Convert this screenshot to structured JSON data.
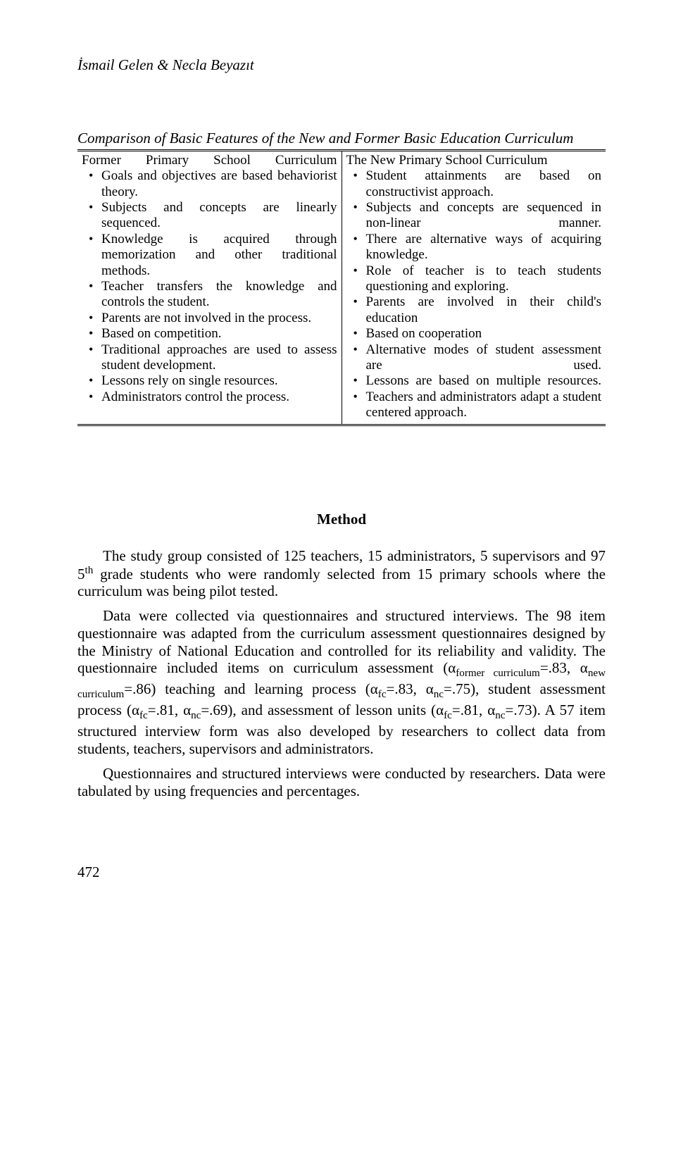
{
  "header": {
    "authors": "İsmail Gelen & Necla Beyazıt"
  },
  "tableTitle": "Comparison of Basic Features of the New and Former Basic Education Curriculum",
  "table": {
    "left": {
      "heading": "Former Primary School Curriculum",
      "items": [
        "Goals and objectives are based behaviorist theory.",
        "Subjects and concepts are linearly sequenced.",
        "Knowledge is acquired through memorization and other traditional methods.",
        "Teacher transfers the knowledge and controls the student.",
        "Parents are not involved in the process.",
        "Based on competition.",
        "Traditional approaches are used to assess student development.",
        "Lessons rely on single resources.",
        "Administrators control the process."
      ],
      "justify": [
        true,
        true,
        true,
        false,
        false,
        false,
        false,
        false,
        false
      ]
    },
    "right": {
      "heading": "The New Primary School Curriculum",
      "items": [
        "Student attainments are based on constructivist approach.",
        "Subjects and concepts are sequenced in non-linear manner.",
        "There are alternative ways of acquiring knowledge.",
        "Role of teacher is to teach students questioning and exploring.",
        "Parents are involved in their child's education",
        "Based on cooperation",
        "Alternative modes of student assessment are used.",
        "Lessons are based on multiple resources.",
        "Teachers and administrators adapt a student centered approach."
      ],
      "justify": [
        false,
        true,
        true,
        false,
        false,
        false,
        true,
        true,
        false
      ]
    }
  },
  "method": {
    "heading": "Method",
    "p1_pre": "The study group consisted of 125 teachers, 15 administrators, 5 supervisors and 97 5",
    "p1_sup": "th",
    "p1_post": " grade students who were randomly selected from 15 primary schools where the curriculum was being pilot tested.",
    "p2_a": "Data were collected via questionnaires and structured interviews. The 98 item questionnaire was adapted from the curriculum assessment questionnaires designed by the Ministry of National Education and controlled for its reliability and validity. The questionnaire included items on curriculum assessment (α",
    "p2_sub1": "former curriculum",
    "p2_b": "=.83, α",
    "p2_sub2": "new curriculum",
    "p2_c": "=.86) teaching and learning process (α",
    "p2_sub3": "fc",
    "p2_d": "=.83, α",
    "p2_sub4": "nc",
    "p2_e": "=.75), student assessment process (α",
    "p2_sub5": "fc",
    "p2_f": "=.81, α",
    "p2_sub6": "nc",
    "p2_g": "=.69),  and assessment of lesson units (α",
    "p2_sub7": "fc",
    "p2_h": "=.81, α",
    "p2_sub8": "nc",
    "p2_i": "=.73).  A 57 item structured interview form was also developed by researchers to collect data from students, teachers, supervisors and administrators.",
    "p3": "Questionnaires and structured interviews were conducted by researchers. Data were tabulated by using frequencies and percentages."
  },
  "pageNumber": "472"
}
